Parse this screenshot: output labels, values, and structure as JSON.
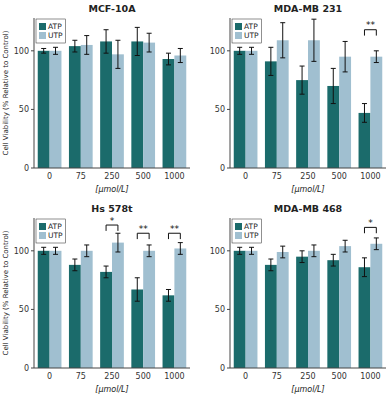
{
  "chart_data": [
    {
      "type": "bar",
      "title": "MCF-10A",
      "categories": [
        "0",
        "75",
        "250",
        "500",
        "1000"
      ],
      "xlabel": "[μmol/L]",
      "ylabel": "Cell Viability (% Relative to Control)",
      "series": [
        {
          "name": "ATP",
          "color": "#1b6b6b",
          "values": [
            100,
            104,
            108,
            108,
            93
          ],
          "errors": [
            2,
            5,
            10,
            12,
            5
          ]
        },
        {
          "name": "UTP",
          "color": "#a0bfd0",
          "values": [
            100,
            105,
            97,
            107,
            96
          ],
          "errors": [
            3,
            8,
            12,
            8,
            6
          ]
        }
      ],
      "annotations": [],
      "ylim": [
        0,
        128
      ],
      "yticks": [
        0,
        50,
        100
      ],
      "grid": false,
      "legend": "upper left"
    },
    {
      "type": "bar",
      "title": "MDA-MB 231",
      "categories": [
        "0",
        "75",
        "250",
        "500",
        "1000"
      ],
      "xlabel": "[μmol/L]",
      "series": [
        {
          "name": "ATP",
          "color": "#1b6b6b",
          "values": [
            100,
            91,
            75,
            70,
            47
          ],
          "errors": [
            3,
            12,
            12,
            15,
            8
          ]
        },
        {
          "name": "UTP",
          "color": "#a0bfd0",
          "values": [
            100,
            109,
            109,
            95,
            95
          ],
          "errors": [
            3,
            15,
            18,
            13,
            5
          ]
        }
      ],
      "annotations": [
        {
          "text": "**",
          "category": "1000",
          "y_top": 118,
          "y_bot": 113
        }
      ],
      "ylim": [
        0,
        128
      ],
      "yticks": [
        0,
        50,
        100
      ],
      "grid": false,
      "legend": "upper left"
    },
    {
      "type": "bar",
      "title": "Hs 578t",
      "categories": [
        "0",
        "75",
        "250",
        "500",
        "1000"
      ],
      "xlabel": "[μmol/L]",
      "ylabel": "Cell Viability (% Relative to Control)",
      "series": [
        {
          "name": "ATP",
          "color": "#1b6b6b",
          "values": [
            100,
            88,
            82,
            67,
            62
          ],
          "errors": [
            3,
            5,
            5,
            10,
            5
          ]
        },
        {
          "name": "UTP",
          "color": "#a0bfd0",
          "values": [
            100,
            100,
            107,
            100,
            102
          ],
          "errors": [
            3,
            5,
            8,
            5,
            5
          ]
        }
      ],
      "annotations": [
        {
          "text": "*",
          "category": "250",
          "y_top": 122,
          "y_bot": 117
        },
        {
          "text": "**",
          "category": "500",
          "y_top": 115,
          "y_bot": 110
        },
        {
          "text": "**",
          "category": "1000",
          "y_top": 115,
          "y_bot": 110
        }
      ],
      "ylim": [
        0,
        128
      ],
      "yticks": [
        0,
        50,
        100
      ],
      "grid": false,
      "legend": "upper left"
    },
    {
      "type": "bar",
      "title": "MDA-MB 468",
      "categories": [
        "0",
        "75",
        "250",
        "500",
        "1000"
      ],
      "xlabel": "[μmol/L]",
      "series": [
        {
          "name": "ATP",
          "color": "#1b6b6b",
          "values": [
            100,
            88,
            95,
            92,
            86
          ],
          "errors": [
            3,
            5,
            5,
            5,
            8
          ]
        },
        {
          "name": "UTP",
          "color": "#a0bfd0",
          "values": [
            100,
            99,
            100,
            104,
            106
          ],
          "errors": [
            3,
            5,
            5,
            5,
            5
          ]
        }
      ],
      "annotations": [
        {
          "text": "*",
          "category": "1000",
          "y_top": 120,
          "y_bot": 115
        }
      ],
      "ylim": [
        0,
        128
      ],
      "yticks": [
        0,
        50,
        100
      ],
      "grid": false,
      "legend": "upper left"
    }
  ]
}
